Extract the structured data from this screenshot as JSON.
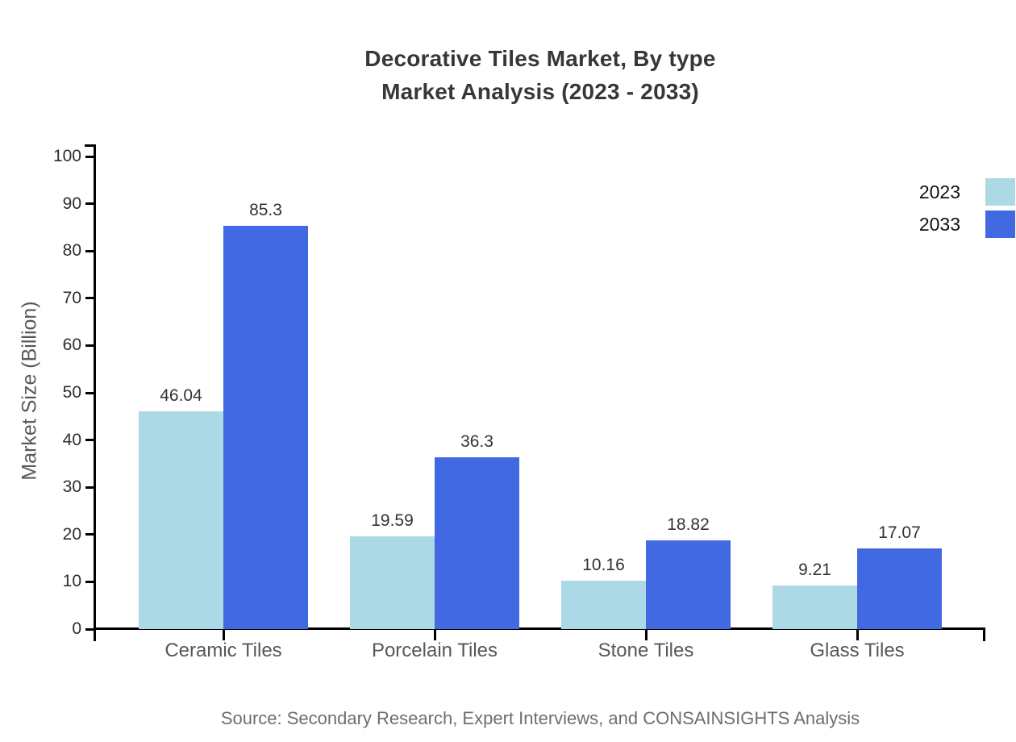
{
  "chart_data": {
    "type": "bar",
    "title": "Decorative Tiles Market, By type",
    "subtitle": "Market Analysis (2023 - 2033)",
    "categories": [
      "Ceramic Tiles",
      "Porcelain Tiles",
      "Stone Tiles",
      "Glass Tiles"
    ],
    "series": [
      {
        "name": "2023",
        "color": "#ADD8E6",
        "values": [
          46.04,
          19.59,
          10.16,
          9.21
        ]
      },
      {
        "name": "2033",
        "color": "#4169E1",
        "values": [
          85.3,
          36.3,
          18.82,
          17.07
        ]
      }
    ],
    "xlabel": "",
    "ylabel": "Market Size (Billion)",
    "ylim": [
      0,
      100
    ],
    "yticks": [
      0,
      10,
      20,
      30,
      40,
      50,
      60,
      70,
      80,
      90,
      100
    ],
    "grid": false,
    "legend_position": "top-right",
    "value_labels_shown": true,
    "axis_color": "#000000",
    "source": "Source: Secondary Research, Expert Interviews, and CONSAINSIGHTS Analysis"
  }
}
